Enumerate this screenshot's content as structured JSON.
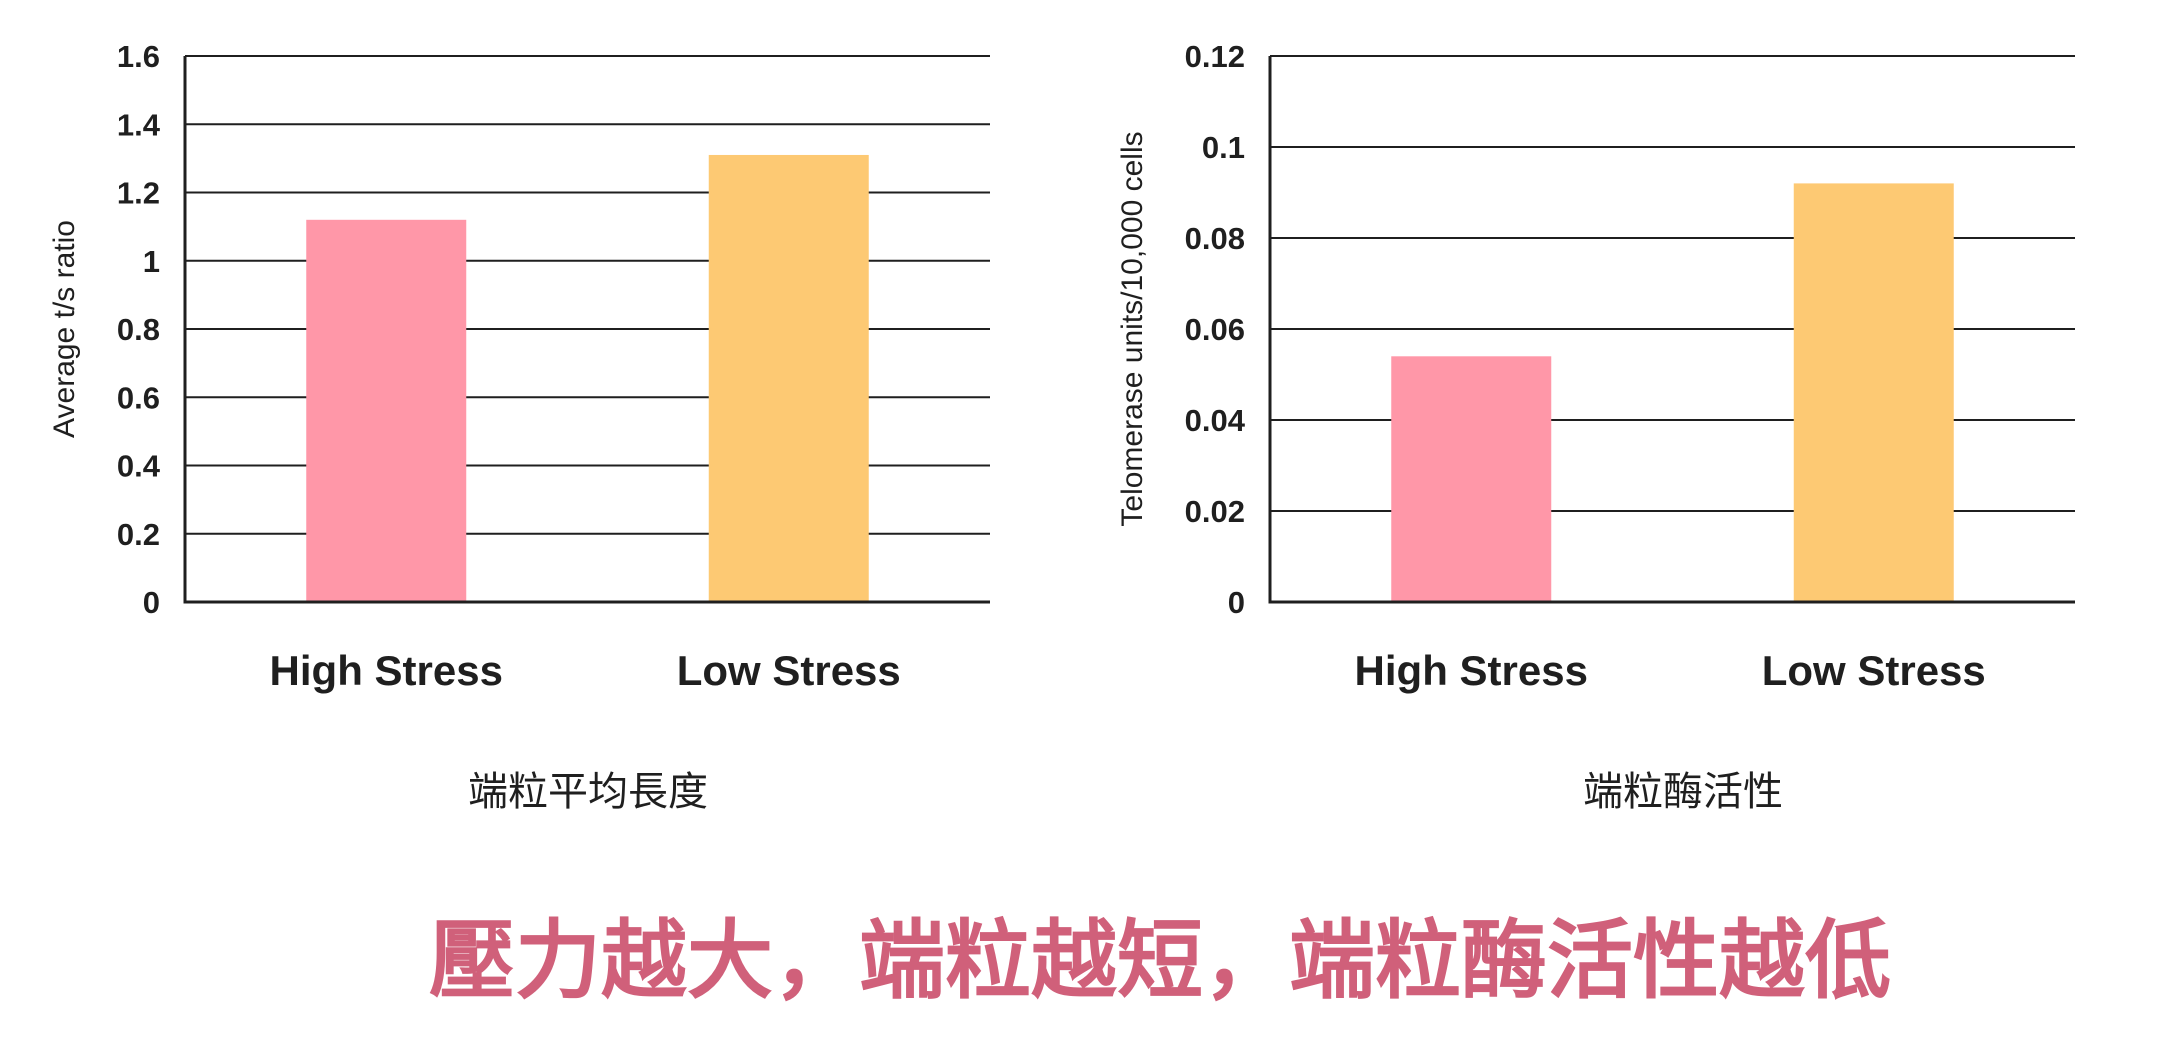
{
  "colors": {
    "high": "#ff97a8",
    "low": "#fdc973",
    "grid": "#1f1f1f",
    "text": "#1f1f1f",
    "headline": "#d0607a"
  },
  "headline": "壓力越大，端粒越短，端粒酶活性越低",
  "chart_data": [
    {
      "type": "bar",
      "categories": [
        "High Stress",
        "Low Stress"
      ],
      "values": [
        1.12,
        1.31
      ],
      "ylabel": "Average t/s ratio",
      "xlabel": "",
      "caption": "端粒平均長度",
      "ylim": [
        0,
        1.6
      ],
      "yticks": [
        "0",
        "0.2",
        "0.4",
        "0.6",
        "0.8",
        "1",
        "1.2",
        "1.4",
        "1.6"
      ],
      "grid": true
    },
    {
      "type": "bar",
      "categories": [
        "High Stress",
        "Low Stress"
      ],
      "values": [
        0.054,
        0.092
      ],
      "ylabel": "Telomerase units/10,000 cells",
      "xlabel": "",
      "caption": "端粒酶活性",
      "ylim": [
        0,
        0.12
      ],
      "yticks": [
        "0",
        "0.02",
        "0.04",
        "0.06",
        "0.08",
        "0.1",
        "0.12"
      ],
      "grid": true
    }
  ]
}
